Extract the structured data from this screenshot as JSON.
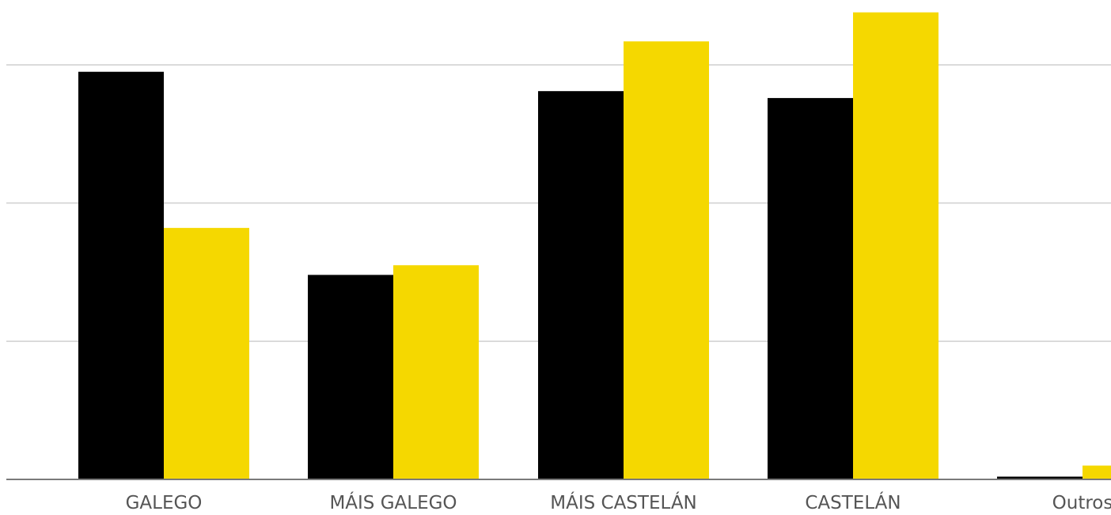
{
  "chart_data": {
    "type": "bar",
    "title": "",
    "xlabel": "",
    "ylabel": "",
    "categories": [
      "GALEGO",
      "MÁIS GALEGO",
      "MÁIS CASTELÁN",
      "CASTELÁN",
      "Outros"
    ],
    "series": [
      {
        "color": "#000000",
        "values": [
          29.5,
          14.8,
          28.1,
          27.6,
          0.2
        ]
      },
      {
        "color": "#F5D800",
        "values": [
          18.2,
          15.5,
          31.7,
          33.8,
          1.0
        ]
      }
    ],
    "ylim": [
      0,
      30
    ],
    "gridlines": [
      10,
      20,
      30
    ],
    "grid": true,
    "legend": "none"
  }
}
